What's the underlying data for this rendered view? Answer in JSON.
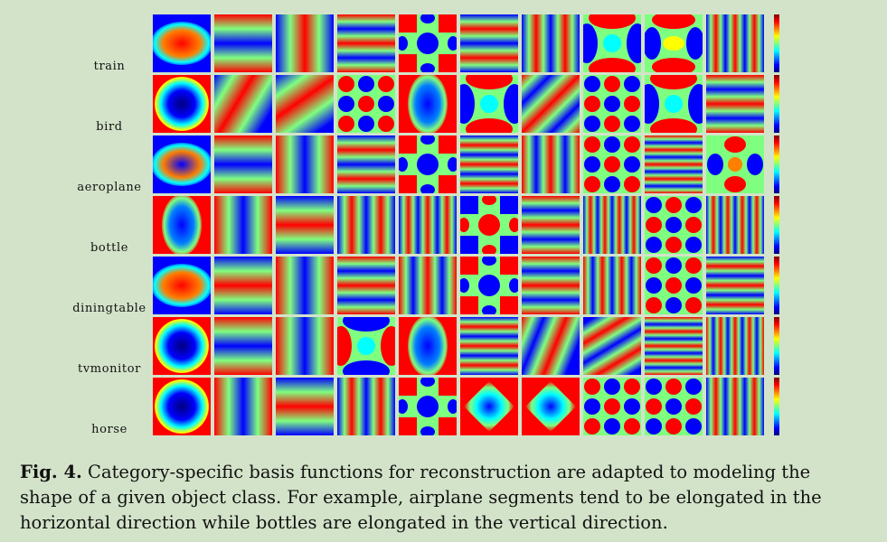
{
  "figure": {
    "row_labels": [
      "train",
      "bird",
      "aeroplane",
      "bottle",
      "diningtable",
      "tvmonitor",
      "horse"
    ],
    "columns": 10,
    "colormap": [
      "#00007f",
      "#0000ff",
      "#007fff",
      "#00ffff",
      "#7fff7f",
      "#ffff00",
      "#ff7f00",
      "#ff0000",
      "#7f0000"
    ]
  },
  "caption": {
    "label": "Fig. 4.",
    "text": "Category-specific basis functions for reconstruction are adapted to modeling the shape of a given object class. For example, airplane segments tend to be elongated in the horizontal direction while bottles are elongated in the vertical direction."
  }
}
